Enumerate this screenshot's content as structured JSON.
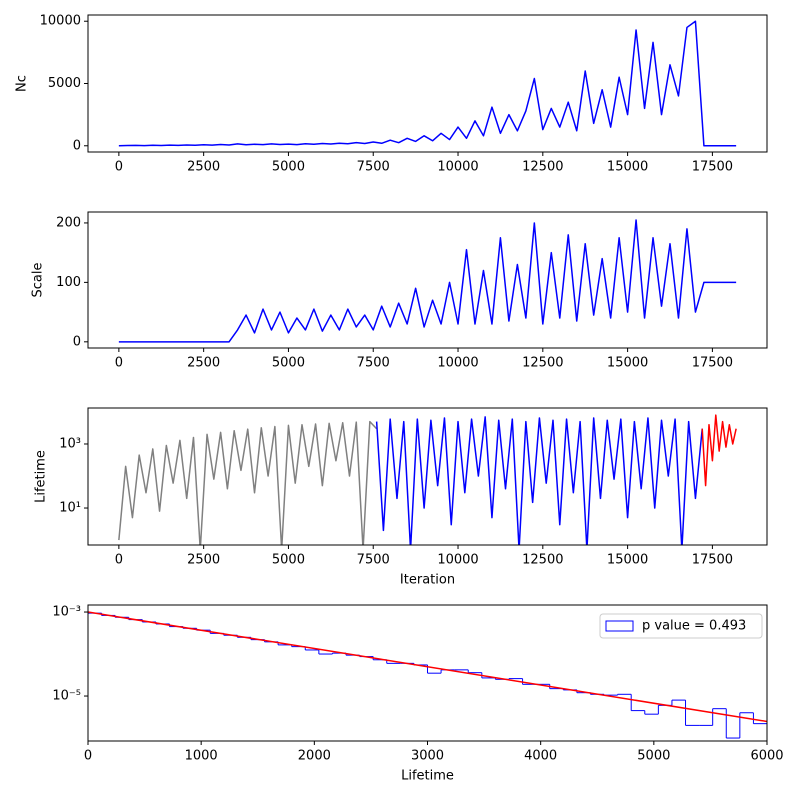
{
  "chart_data": [
    {
      "type": "line",
      "ylabel": "Nc",
      "x": [
        0,
        250,
        500,
        750,
        1000,
        1250,
        1500,
        1750,
        2000,
        2250,
        2500,
        2750,
        3000,
        3250,
        3500,
        3750,
        4000,
        4250,
        4500,
        4750,
        5000,
        5250,
        5500,
        5750,
        6000,
        6250,
        6500,
        6750,
        7000,
        7250,
        7500,
        7750,
        8000,
        8250,
        8500,
        8750,
        9000,
        9250,
        9500,
        9750,
        10000,
        10250,
        10500,
        10750,
        11000,
        11250,
        11500,
        11750,
        12000,
        12250,
        12500,
        12750,
        13000,
        13250,
        13500,
        13750,
        14000,
        14250,
        14500,
        14750,
        15000,
        15250,
        15500,
        15750,
        16000,
        16250,
        16500,
        16750,
        17000,
        17250,
        17500,
        17750,
        18000,
        18200
      ],
      "series": [
        {
          "color": "#0000ff",
          "values": [
            0,
            20,
            30,
            10,
            40,
            20,
            50,
            30,
            60,
            40,
            80,
            50,
            100,
            60,
            150,
            80,
            120,
            90,
            150,
            100,
            130,
            90,
            160,
            120,
            180,
            140,
            200,
            160,
            250,
            180,
            300,
            200,
            450,
            250,
            600,
            350,
            800,
            400,
            1000,
            500,
            1500,
            600,
            2000,
            800,
            3100,
            1000,
            2500,
            1200,
            2800,
            5400,
            1300,
            3000,
            1500,
            3500,
            1200,
            6000,
            1800,
            4500,
            1500,
            5500,
            2500,
            9300,
            3000,
            8300,
            2500,
            6500,
            4000,
            9500,
            10000,
            0,
            0,
            0,
            0,
            0
          ]
        }
      ],
      "xlim": [
        -910,
        19110
      ],
      "xticks": [
        0,
        2500,
        5000,
        7500,
        10000,
        12500,
        15000,
        17500
      ],
      "ylim": [
        -500,
        10500
      ],
      "yticks": [
        0,
        5000,
        10000
      ]
    },
    {
      "type": "line",
      "ylabel": "Scale",
      "x": [
        0,
        250,
        500,
        750,
        1000,
        1250,
        1500,
        1750,
        2000,
        2250,
        2500,
        2750,
        3000,
        3250,
        3500,
        3750,
        4000,
        4250,
        4500,
        4750,
        5000,
        5250,
        5500,
        5750,
        6000,
        6250,
        6500,
        6750,
        7000,
        7250,
        7500,
        7750,
        8000,
        8250,
        8500,
        8750,
        9000,
        9250,
        9500,
        9750,
        10000,
        10250,
        10500,
        10750,
        11000,
        11250,
        11500,
        11750,
        12000,
        12250,
        12500,
        12750,
        13000,
        13250,
        13500,
        13750,
        14000,
        14250,
        14500,
        14750,
        15000,
        15250,
        15500,
        15750,
        16000,
        16250,
        16500,
        16750,
        17000,
        17250,
        17500,
        17750,
        18000,
        18200
      ],
      "series": [
        {
          "color": "#0000ff",
          "values": [
            0,
            0,
            0,
            0,
            0,
            0,
            0,
            0,
            0,
            0,
            0,
            0,
            0,
            0,
            20,
            45,
            15,
            55,
            20,
            50,
            15,
            40,
            20,
            55,
            18,
            45,
            20,
            55,
            25,
            45,
            20,
            60,
            25,
            65,
            30,
            90,
            25,
            70,
            30,
            100,
            30,
            155,
            30,
            120,
            30,
            175,
            35,
            130,
            40,
            200,
            30,
            150,
            40,
            180,
            35,
            165,
            45,
            140,
            40,
            175,
            50,
            205,
            40,
            175,
            60,
            165,
            40,
            190,
            50,
            100,
            100,
            100,
            100,
            100
          ]
        }
      ],
      "xlim": [
        -910,
        19110
      ],
      "xticks": [
        0,
        2500,
        5000,
        7500,
        10000,
        12500,
        15000,
        17500
      ],
      "ylim": [
        -10.4,
        218.4
      ],
      "yticks": [
        0,
        100,
        200
      ]
    },
    {
      "type": "line",
      "ylabel": "Lifetime",
      "xlabel": "Iteration",
      "yscale": "log",
      "series": [
        {
          "color": "#808080",
          "x": [
            0,
            200,
            400,
            600,
            800,
            1000,
            1200,
            1400,
            1600,
            1800,
            2000,
            2200,
            2400,
            2600,
            2800,
            3000,
            3200,
            3400,
            3600,
            3800,
            4000,
            4200,
            4400,
            4600,
            4800,
            5000,
            5200,
            5400,
            5600,
            5800,
            6000,
            6200,
            6400,
            6600,
            6800,
            7000,
            7200,
            7400,
            7600
          ],
          "values": [
            1,
            200,
            5,
            450,
            30,
            700,
            8,
            900,
            60,
            1300,
            20,
            1600,
            0.5,
            2000,
            80,
            2300,
            40,
            2600,
            150,
            2900,
            30,
            3200,
            100,
            3500,
            0.5,
            3800,
            60,
            4000,
            200,
            4200,
            50,
            4400,
            300,
            4600,
            100,
            4800,
            0.5,
            5000,
            3000
          ]
        },
        {
          "color": "#0000ff",
          "x": [
            7600,
            7800,
            8000,
            8200,
            8400,
            8600,
            8800,
            9000,
            9200,
            9400,
            9600,
            9800,
            10000,
            10200,
            10400,
            10600,
            10800,
            11000,
            11200,
            11400,
            11600,
            11800,
            12000,
            12200,
            12400,
            12600,
            12800,
            13000,
            13200,
            13400,
            13600,
            13800,
            14000,
            14200,
            14400,
            14600,
            14800,
            15000,
            15200,
            15400,
            15600,
            15800,
            16000,
            16200,
            16400,
            16600,
            16800,
            17000,
            17200
          ],
          "values": [
            5000,
            2,
            6000,
            20,
            5000,
            0.5,
            6000,
            10,
            5500,
            50,
            6500,
            3,
            5000,
            30,
            6000,
            100,
            7000,
            5,
            5500,
            40,
            6000,
            0.5,
            5000,
            15,
            6500,
            60,
            5500,
            3,
            6000,
            30,
            5000,
            0.5,
            6500,
            20,
            5500,
            80,
            6000,
            5,
            5000,
            40,
            6500,
            10,
            5500,
            100,
            6000,
            0.5,
            5000,
            20,
            3000
          ]
        },
        {
          "color": "#ff0000",
          "x": [
            17200,
            17300,
            17400,
            17500,
            17600,
            17700,
            17800,
            17900,
            18000,
            18100,
            18200
          ],
          "values": [
            3000,
            50,
            4000,
            300,
            8000,
            600,
            5000,
            800,
            4000,
            1000,
            3000
          ]
        }
      ],
      "xlim": [
        -910,
        19110
      ],
      "xticks": [
        0,
        2500,
        5000,
        7500,
        10000,
        12500,
        15000,
        17500
      ],
      "ylim": [
        0.7,
        13300
      ],
      "yticks": [
        {
          "value": 10,
          "label": "10¹"
        },
        {
          "value": 1000,
          "label": "10³"
        }
      ]
    },
    {
      "type": "histogram",
      "xlabel": "Lifetime",
      "yscale": "log",
      "legend": "upper right",
      "name": "p value = 0.493",
      "color": "#0000ff",
      "bins": [
        0,
        120,
        240,
        360,
        480,
        600,
        720,
        840,
        960,
        1080,
        1200,
        1320,
        1440,
        1560,
        1680,
        1800,
        1920,
        2040,
        2160,
        2280,
        2400,
        2520,
        2640,
        2760,
        2880,
        3000,
        3120,
        3240,
        3360,
        3480,
        3600,
        3720,
        3840,
        3960,
        4080,
        4200,
        4320,
        4440,
        4560,
        4680,
        4800,
        4920,
        5040,
        5160,
        5280,
        5400,
        5520,
        5640,
        5760,
        5880,
        6000
      ],
      "values": [
        0.00094,
        0.00083,
        0.00075,
        0.00066,
        0.00058,
        0.00052,
        0.00045,
        0.00041,
        0.00037,
        0.00031,
        0.00028,
        0.00025,
        0.00022,
        0.000195,
        0.000165,
        0.00015,
        0.000125,
        0.0001,
        0.000105,
        9.4e-05,
        8.7e-05,
        7.3e-05,
        6e-05,
        6e-05,
        5.5e-05,
        3.5e-05,
        4.2e-05,
        4.2e-05,
        3.6e-05,
        2.7e-05,
        2.5e-05,
        2.6e-05,
        1.9e-05,
        1.9e-05,
        1.5e-05,
        1.4e-05,
        1.2e-05,
        1.1e-05,
        1.05e-05,
        1.1e-05,
        4.5e-06,
        3.7e-06,
        6e-06,
        8e-06,
        2e-06,
        2e-06,
        5e-06,
        1e-06,
        4e-06,
        2.2e-06
      ],
      "fit": {
        "color": "#ff0000",
        "x": [
          0,
          6000
        ],
        "values": [
          0.001,
          2.48e-06
        ]
      },
      "xlim": [
        0,
        6000
      ],
      "xticks": [
        0,
        1000,
        2000,
        3000,
        4000,
        5000,
        6000
      ],
      "ylim": [
        8.5e-07,
        0.00147
      ],
      "yticks": [
        {
          "value": 1e-05,
          "label": "10⁻⁵"
        },
        {
          "value": 0.001,
          "label": "10⁻³"
        }
      ]
    }
  ]
}
